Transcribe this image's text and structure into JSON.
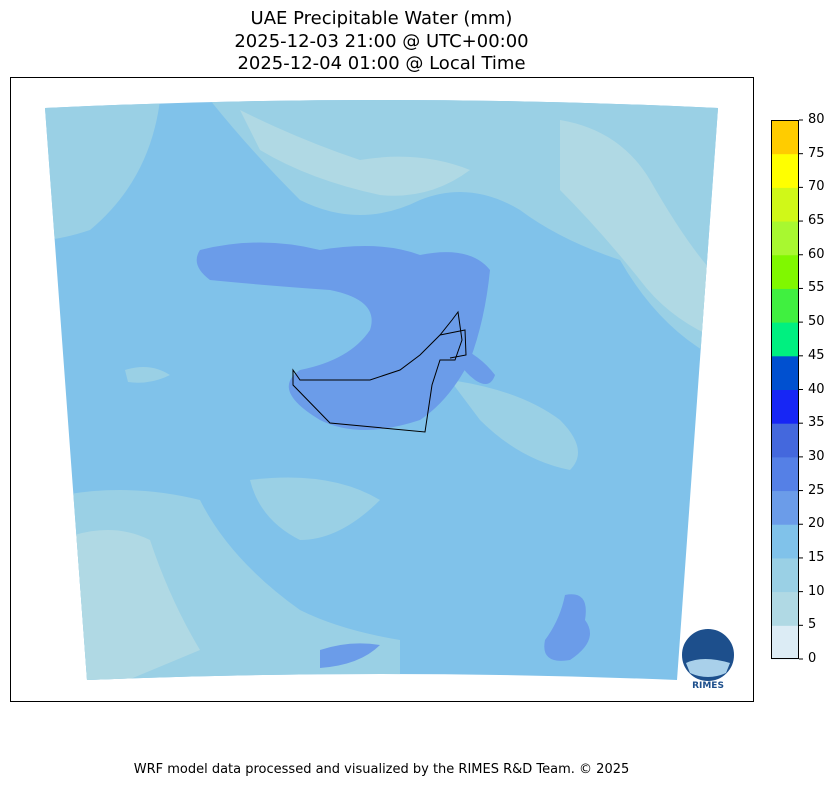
{
  "title": {
    "line1": "UAE Precipitable Water (mm)",
    "line2": "2025-12-03 21:00 @ UTC+00:00",
    "line3": "2025-12-04 01:00 @ Local Time"
  },
  "colorbar": {
    "ticks": [
      "0",
      "5",
      "10",
      "15",
      "20",
      "25",
      "30",
      "35",
      "40",
      "45",
      "50",
      "55",
      "60",
      "65",
      "70",
      "75",
      "80"
    ],
    "colors": [
      "#dcecf5",
      "#b0d9e4",
      "#9ad0e5",
      "#80c2ea",
      "#6b9ce9",
      "#5580e6",
      "#4468dd",
      "#1726f5",
      "#0050d0",
      "#00f080",
      "#40f040",
      "#80f800",
      "#a8f830",
      "#d0f818",
      "#ffff00",
      "#ffcc00"
    ]
  },
  "logo": {
    "text": "RIMES"
  },
  "footer": "WRF model data processed and visualized by the RIMES R&D Team. © 2025"
}
